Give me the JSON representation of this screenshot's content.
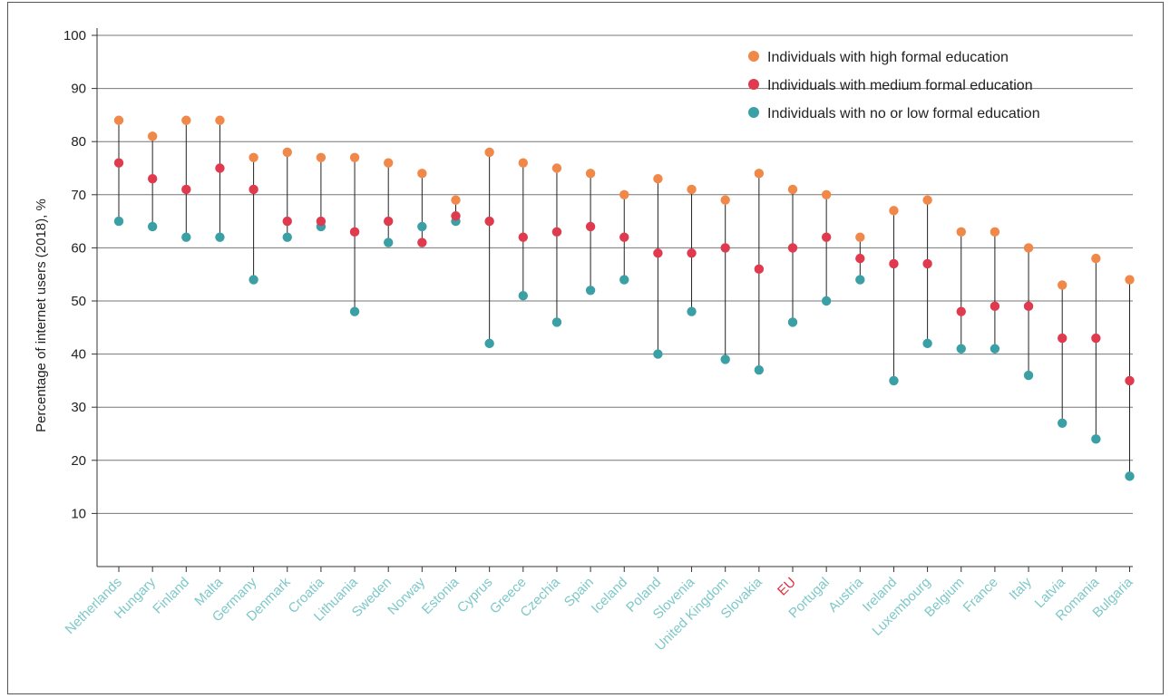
{
  "chart_data": {
    "type": "scatter",
    "ylabel": "Percentage of internet users (2018), %",
    "ylim": [
      0,
      100
    ],
    "yticks": [
      10,
      20,
      30,
      40,
      50,
      60,
      70,
      80,
      90,
      100
    ],
    "grid": "horizontal",
    "legend_position": "top-right",
    "categories": [
      "Netherlands",
      "Hungary",
      "Finland",
      "Malta",
      "Germany",
      "Denmark",
      "Croatia",
      "Lithuania",
      "Sweden",
      "Norway",
      "Estonia",
      "Cyprus",
      "Greece",
      "Czechia",
      "Spain",
      "Iceland",
      "Poland",
      "Slovenia",
      "United Kingdom",
      "Slovakia",
      "EU",
      "Portugal",
      "Austria",
      "Ireland",
      "Luxembourg",
      "Belgium",
      "France",
      "Italy",
      "Latvia",
      "Romania",
      "Bulgaria"
    ],
    "highlight_category": "EU",
    "category_color": "#7ec8c8",
    "highlight_color": "#e03040",
    "series": [
      {
        "name": "Individuals with high formal education",
        "color": "#f0884a",
        "values": [
          84,
          81,
          84,
          84,
          77,
          78,
          77,
          77,
          76,
          74,
          69,
          78,
          76,
          75,
          74,
          70,
          73,
          71,
          69,
          74,
          71,
          70,
          62,
          67,
          69,
          63,
          63,
          60,
          53,
          58,
          54
        ]
      },
      {
        "name": "Individuals with medium formal education",
        "color": "#e03a4e",
        "values": [
          76,
          73,
          71,
          75,
          71,
          65,
          65,
          63,
          65,
          61,
          66,
          65,
          62,
          63,
          64,
          62,
          59,
          59,
          60,
          56,
          60,
          62,
          58,
          57,
          57,
          48,
          49,
          49,
          43,
          43,
          35
        ]
      },
      {
        "name": "Individuals with no or low formal education",
        "color": "#3aa0a5",
        "values": [
          65,
          64,
          62,
          62,
          54,
          62,
          64,
          48,
          61,
          64,
          65,
          42,
          51,
          46,
          52,
          54,
          40,
          48,
          39,
          37,
          46,
          50,
          54,
          35,
          42,
          41,
          41,
          36,
          27,
          24,
          17
        ]
      }
    ]
  }
}
